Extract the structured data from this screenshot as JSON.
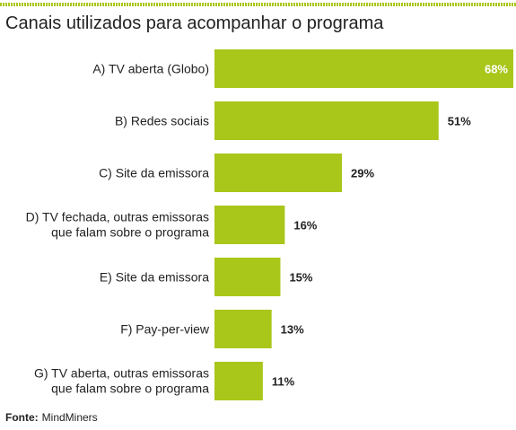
{
  "title": "Canais utilizados para acompanhar o programa",
  "source": {
    "label": "Fonte:",
    "text": "MindMiners"
  },
  "colors": {
    "bar": "#a9c61a",
    "text": "#222222",
    "inside_label": "#ffffff"
  },
  "chart_data": {
    "type": "bar",
    "orientation": "horizontal",
    "title": "Canais utilizados para acompanhar o programa",
    "categories": [
      [
        "A) TV aberta (Globo)"
      ],
      [
        "B) Redes sociais"
      ],
      [
        "C) Site da emissora"
      ],
      [
        "D) TV fechada, outras emissoras",
        "que falam sobre o programa"
      ],
      [
        "E) Site da emissora"
      ],
      [
        "F) Pay-per-view"
      ],
      [
        "G) TV aberta, outras emissoras",
        "que falam sobre o programa"
      ]
    ],
    "values": [
      68,
      51,
      29,
      16,
      15,
      13,
      11
    ],
    "value_labels": [
      "68%",
      "51%",
      "29%",
      "16%",
      "15%",
      "13%",
      "11%"
    ],
    "grid": false,
    "legend": "none"
  }
}
